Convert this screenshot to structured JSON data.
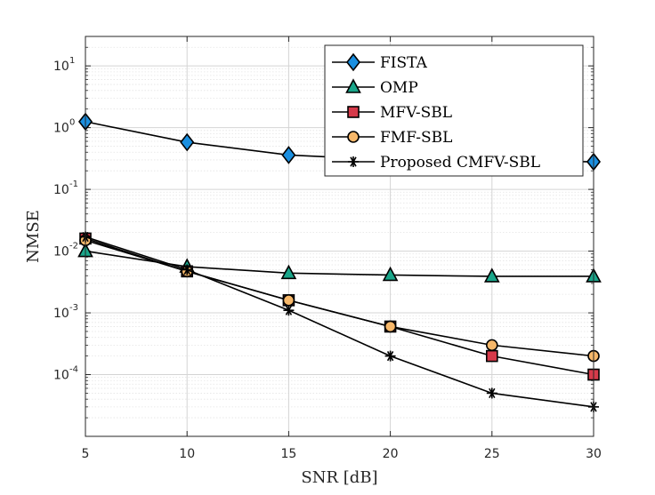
{
  "chart_data": {
    "type": "line",
    "xlabel": "SNR [dB]",
    "ylabel": "NMSE",
    "yscale": "log",
    "xlim": [
      5,
      30
    ],
    "ylim": [
      1e-05,
      30
    ],
    "grid": true,
    "legend_position": "top-right",
    "x": [
      5,
      10,
      15,
      20,
      25,
      30
    ],
    "x_ticks": [
      "5",
      "10",
      "15",
      "20",
      "25",
      "30"
    ],
    "y_ticks": [
      {
        "value": 10,
        "base": "10",
        "exp": "1"
      },
      {
        "value": 1,
        "base": "10",
        "exp": "0"
      },
      {
        "value": 0.1,
        "base": "10",
        "exp": "-1"
      },
      {
        "value": 0.01,
        "base": "10",
        "exp": "-2"
      },
      {
        "value": 0.001,
        "base": "10",
        "exp": "-3"
      },
      {
        "value": 0.0001,
        "base": "10",
        "exp": "-4"
      }
    ],
    "series": [
      {
        "name": "FISTA",
        "marker": "diamond",
        "color": "#1a8fe0",
        "values": [
          1.25,
          0.58,
          0.36,
          0.3,
          0.29,
          0.28
        ]
      },
      {
        "name": "OMP",
        "marker": "triangle",
        "color": "#1aa68a",
        "values": [
          0.01,
          0.0056,
          0.0044,
          0.0041,
          0.0039,
          0.0039
        ]
      },
      {
        "name": "MFV-SBL",
        "marker": "square",
        "color": "#d63a4a",
        "values": [
          0.016,
          0.0047,
          0.0016,
          0.0006,
          0.0002,
          0.0001
        ]
      },
      {
        "name": "FMF-SBL",
        "marker": "circle",
        "color": "#f7b86a",
        "values": [
          0.015,
          0.0047,
          0.0016,
          0.0006,
          0.0003,
          0.0002
        ]
      },
      {
        "name": "Proposed CMFV-SBL",
        "marker": "asterisk",
        "color": "#000000",
        "values": [
          0.017,
          0.005,
          0.0011,
          0.0002,
          5e-05,
          3e-05
        ]
      }
    ]
  }
}
